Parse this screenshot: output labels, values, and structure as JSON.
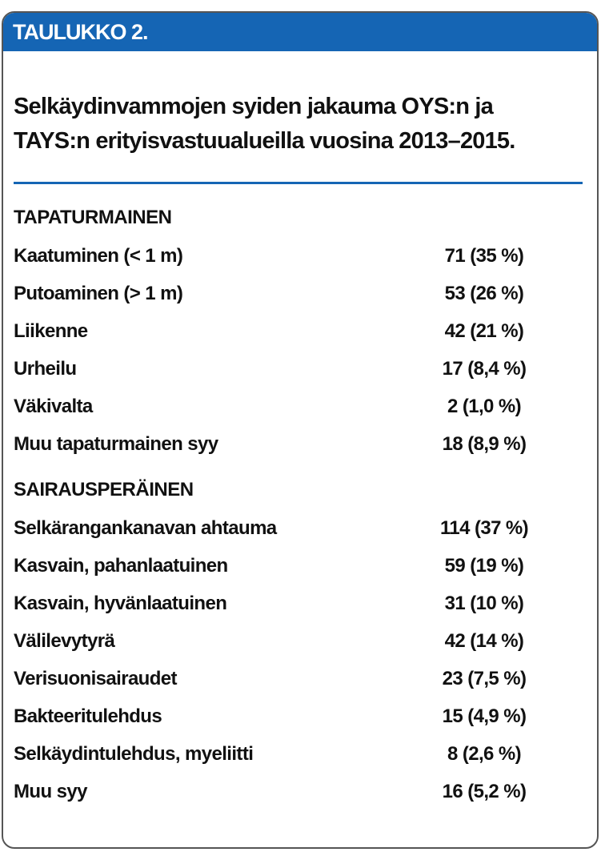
{
  "header": {
    "label": "TAULUKKO 2."
  },
  "title": [
    "Selkäydinvammojen syiden jakauma OYS:n ja",
    "TAYS:n erityisvastuualueilla vuosina 2013–2015."
  ],
  "sections": [
    {
      "heading": "TAPATURMAINEN",
      "rows": [
        [
          "Kaatuminen (< 1 m)",
          "71 (35 %)"
        ],
        [
          "Putoaminen (> 1 m)",
          "53 (26 %)"
        ],
        [
          "Liikenne",
          "42 (21 %)"
        ],
        [
          "Urheilu",
          "17 (8,4 %)"
        ],
        [
          "Väkivalta",
          "2 (1,0 %)"
        ],
        [
          "Muu tapaturmainen syy",
          "18 (8,9 %)"
        ]
      ]
    },
    {
      "heading": "SAIRAUSPERÄINEN",
      "rows": [
        [
          "Selkärangankanavan ahtauma",
          "114 (37 %)"
        ],
        [
          "Kasvain, pahanlaatuinen",
          "59 (19 %)"
        ],
        [
          "Kasvain, hyvänlaatuinen",
          "31 (10 %)"
        ],
        [
          "Välilevytyrä",
          "42 (14 %)"
        ],
        [
          "Verisuonisairaudet",
          "23 (7,5 %)"
        ],
        [
          "Bakteeritulehdus",
          "15 (4,9 %)"
        ],
        [
          "Selkäydintulehdus, myeliitti",
          "8 (2,6 %)"
        ],
        [
          "Muu syy",
          "16 (5,2 %)"
        ]
      ]
    }
  ]
}
